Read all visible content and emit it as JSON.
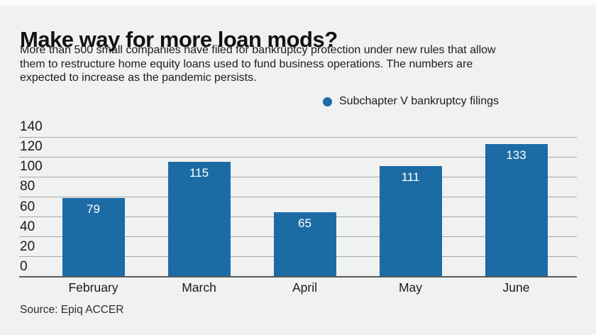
{
  "header": {
    "title": "Make way for more loan mods?",
    "subtitle_lines": [
      "More than 500 small companies have filed for bankruptcy protection under new rules that allow",
      "them to restructure home equity loans used to fund business operations. The numbers are",
      "expected to increase as the pandemic persists."
    ]
  },
  "legend": {
    "label": "Subchapter V bankruptcy filings"
  },
  "chart_data": {
    "type": "bar",
    "title": "Make way for more loan mods?",
    "categories": [
      "February",
      "March",
      "April",
      "May",
      "June"
    ],
    "values": [
      79,
      115,
      65,
      111,
      133
    ],
    "series_name": "Subchapter V bankruptcy filings",
    "xlabel": "",
    "ylabel": "",
    "ylim": [
      0,
      140
    ],
    "yticks": [
      0,
      20,
      40,
      60,
      80,
      100,
      120,
      140
    ],
    "grid": true,
    "legend_position": "top-center",
    "value_labels": "inside-top-white"
  },
  "source": {
    "text": "Source: Epiq ACCER"
  },
  "colors": {
    "background": "#f0f1f1",
    "bar": "#1d6ba5",
    "gridline": "#a6a6a6",
    "axis": "#5a5a5a",
    "text": "#1a1a1a",
    "value_label": "#ffffff"
  }
}
